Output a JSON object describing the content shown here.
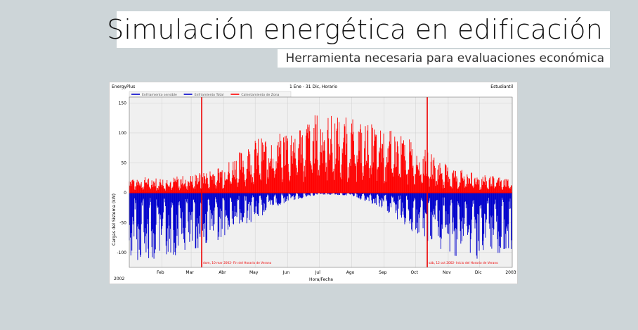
{
  "header": {
    "title": "Simulación energética en edificación",
    "subtitle": "Herramienta necesaria para evaluaciones económica"
  },
  "chart_window": {
    "app_name": "EnergyPlus",
    "period": "1 Ene - 31 Dic, Horario",
    "license": "Estudiantil",
    "year_label": "2002"
  },
  "colors": {
    "heating": "#ff0000",
    "cooling": "#0000cc",
    "marker": "#ee0000",
    "plot_bg": "#f0f0f0",
    "grid": "#cfcfcf"
  },
  "chart_data": {
    "type": "area",
    "xlabel": "Hora/Fecha",
    "ylabel": "Cargas del Sistema (kW)",
    "ylim": [
      -125,
      160
    ],
    "yticks": [
      150,
      100,
      50,
      0,
      -50,
      -100
    ],
    "x_tick_labels": [
      "Feb",
      "Mar",
      "Abr",
      "May",
      "Jun",
      "Jul",
      "Ago",
      "Sep",
      "Oct",
      "Nov",
      "Dic",
      "2003"
    ],
    "x_tick_days": [
      31,
      59,
      90,
      120,
      151,
      181,
      212,
      243,
      273,
      304,
      334,
      365
    ],
    "grid": true,
    "legend_position": "top-left",
    "series": [
      {
        "name": "Enfriamiento sensible",
        "color": "#0000cc"
      },
      {
        "name": "Enfriamiento Total",
        "color": "#0000cc"
      },
      {
        "name": "Calentamiento de Zona",
        "color": "#ff0000"
      }
    ],
    "heating_envelope": {
      "day": [
        0,
        31,
        59,
        90,
        120,
        151,
        181,
        212,
        243,
        273,
        304,
        334,
        365
      ],
      "max_kW": [
        28,
        25,
        30,
        48,
        90,
        110,
        135,
        125,
        110,
        85,
        45,
        30,
        25
      ]
    },
    "cooling_envelope": {
      "day": [
        0,
        31,
        59,
        90,
        120,
        151,
        181,
        212,
        243,
        273,
        304,
        334,
        365
      ],
      "min_kW": [
        -115,
        -110,
        -100,
        -75,
        -45,
        -15,
        -3,
        -5,
        -30,
        -70,
        -105,
        -112,
        -110
      ]
    },
    "markers": [
      {
        "day": 69,
        "label": "dom, 10 mar 2002- Fin del Horario de Verano"
      },
      {
        "day": 284,
        "label": "sáb, 12 oct 2002- Inicio del Horario de Verano"
      }
    ]
  }
}
